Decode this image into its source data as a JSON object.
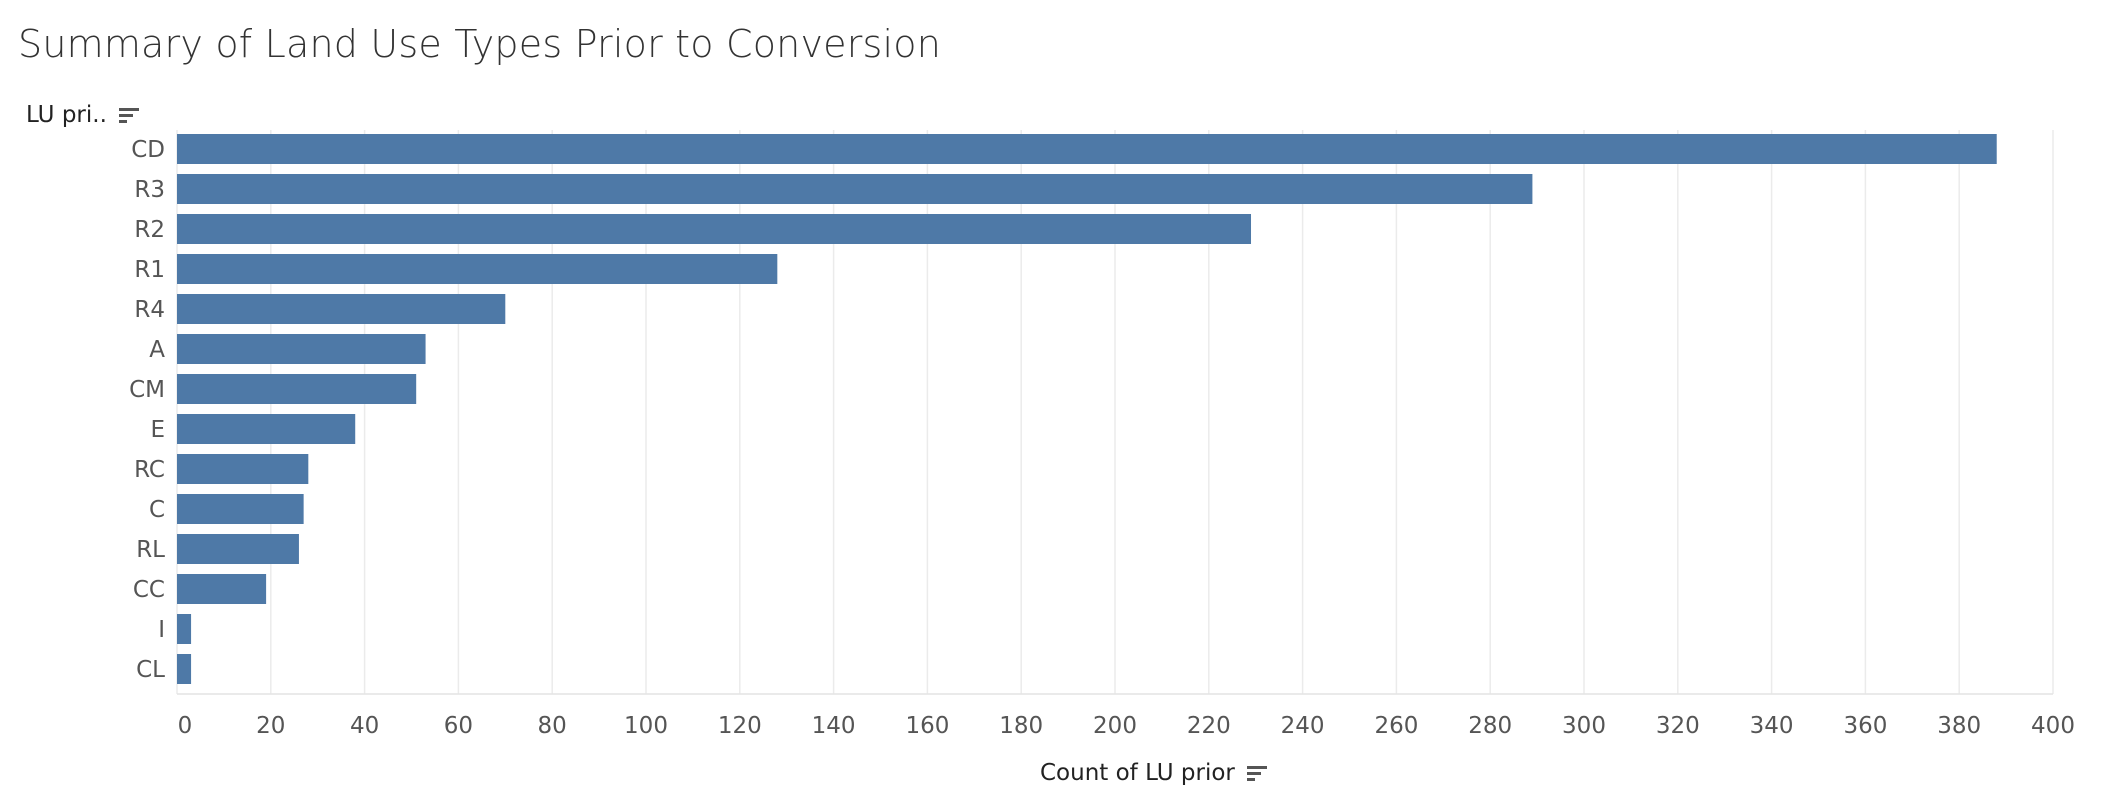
{
  "chart_data": {
    "type": "bar",
    "orientation": "horizontal",
    "title": "Summary of Land Use Types Prior to Conversion",
    "ylabel": "LU pri..",
    "xlabel": "Count of LU prior",
    "categories": [
      "CD",
      "R3",
      "R2",
      "R1",
      "R4",
      "A",
      "CM",
      "E",
      "RC",
      "C",
      "RL",
      "CC",
      "I",
      "CL"
    ],
    "values": [
      388,
      289,
      229,
      128,
      70,
      53,
      51,
      38,
      28,
      27,
      26,
      19,
      3,
      3
    ],
    "xlim": [
      0,
      400
    ],
    "xticks": [
      0,
      20,
      40,
      60,
      80,
      100,
      120,
      140,
      160,
      180,
      200,
      220,
      240,
      260,
      280,
      300,
      320,
      340,
      360,
      380,
      400
    ],
    "grid": "vertical",
    "bar_color": "#4e79a7",
    "grid_color": "#ebebeb"
  },
  "icons": {
    "y_sort": "sort-descending-icon",
    "x_sort": "sort-descending-icon"
  }
}
